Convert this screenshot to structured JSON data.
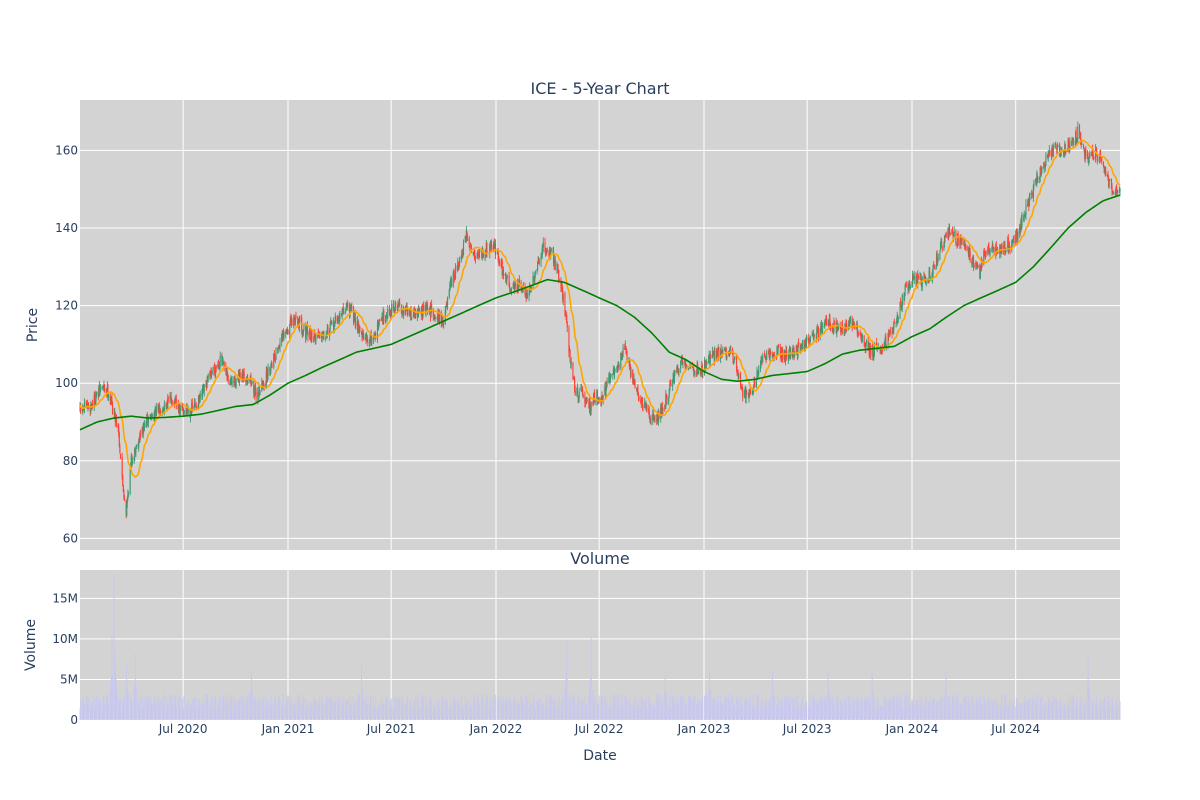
{
  "chart_data": [
    {
      "type": "candlestick",
      "title": "ICE - 5-Year Chart",
      "ylabel": "Price",
      "xlabel": "",
      "ylim": [
        57,
        173
      ],
      "yticks": [
        60,
        80,
        100,
        120,
        140,
        160
      ],
      "xlim": [
        "2020-01-02",
        "2024-12-31"
      ],
      "grid": true,
      "increasing_color": "#3d9970",
      "decreasing_color": "#ff4136",
      "overlays": [
        {
          "color": "#ffa500",
          "role": "short moving average"
        },
        {
          "color": "#008000",
          "role": "long moving average"
        }
      ],
      "close_anchors": [
        [
          "2020-01-02",
          93
        ],
        [
          "2020-01-20",
          94
        ],
        [
          "2020-02-10",
          99
        ],
        [
          "2020-02-21",
          98
        ],
        [
          "2020-03-02",
          92
        ],
        [
          "2020-03-09",
          89
        ],
        [
          "2020-03-16",
          75
        ],
        [
          "2020-03-23",
          67
        ],
        [
          "2020-04-01",
          80
        ],
        [
          "2020-04-15",
          86
        ],
        [
          "2020-05-01",
          91
        ],
        [
          "2020-05-20",
          93
        ],
        [
          "2020-06-10",
          96
        ],
        [
          "2020-06-25",
          93
        ],
        [
          "2020-07-15",
          93
        ],
        [
          "2020-08-01",
          96
        ],
        [
          "2020-08-20",
          103
        ],
        [
          "2020-09-05",
          106
        ],
        [
          "2020-09-20",
          100
        ],
        [
          "2020-10-10",
          101
        ],
        [
          "2020-10-25",
          102
        ],
        [
          "2020-11-05",
          97
        ],
        [
          "2020-11-20",
          100
        ],
        [
          "2020-12-05",
          106
        ],
        [
          "2020-12-20",
          111
        ],
        [
          "2021-01-05",
          115
        ],
        [
          "2021-01-15",
          117
        ],
        [
          "2021-02-01",
          113
        ],
        [
          "2021-02-15",
          112
        ],
        [
          "2021-03-01",
          113
        ],
        [
          "2021-03-15",
          114
        ],
        [
          "2021-04-01",
          117
        ],
        [
          "2021-04-15",
          120
        ],
        [
          "2021-05-01",
          116
        ],
        [
          "2021-05-15",
          111
        ],
        [
          "2021-06-01",
          112
        ],
        [
          "2021-06-15",
          117
        ],
        [
          "2021-07-01",
          119
        ],
        [
          "2021-07-15",
          120
        ],
        [
          "2021-08-01",
          118
        ],
        [
          "2021-08-15",
          118
        ],
        [
          "2021-09-01",
          119
        ],
        [
          "2021-09-15",
          118
        ],
        [
          "2021-10-01",
          116
        ],
        [
          "2021-10-15",
          126
        ],
        [
          "2021-11-01",
          132
        ],
        [
          "2021-11-10",
          138
        ],
        [
          "2021-11-25",
          133
        ],
        [
          "2021-12-10",
          134
        ],
        [
          "2021-12-28",
          136
        ],
        [
          "2022-01-10",
          130
        ],
        [
          "2022-01-25",
          125
        ],
        [
          "2022-02-10",
          125
        ],
        [
          "2022-02-25",
          123
        ],
        [
          "2022-03-10",
          127
        ],
        [
          "2022-03-25",
          135
        ],
        [
          "2022-04-10",
          133
        ],
        [
          "2022-04-25",
          126
        ],
        [
          "2022-05-01",
          120
        ],
        [
          "2022-05-10",
          108
        ],
        [
          "2022-05-20",
          98
        ],
        [
          "2022-06-01",
          97
        ],
        [
          "2022-06-15",
          94
        ],
        [
          "2022-06-25",
          97
        ],
        [
          "2022-07-05",
          96
        ],
        [
          "2022-07-20",
          101
        ],
        [
          "2022-08-05",
          105
        ],
        [
          "2022-08-15",
          110
        ],
        [
          "2022-08-25",
          103
        ],
        [
          "2022-09-10",
          96
        ],
        [
          "2022-09-25",
          92
        ],
        [
          "2022-10-10",
          91
        ],
        [
          "2022-10-25",
          95
        ],
        [
          "2022-11-10",
          102
        ],
        [
          "2022-11-25",
          106
        ],
        [
          "2022-12-10",
          104
        ],
        [
          "2022-12-25",
          103
        ],
        [
          "2023-01-10",
          106
        ],
        [
          "2023-01-25",
          108
        ],
        [
          "2023-02-10",
          108
        ],
        [
          "2023-02-25",
          106
        ],
        [
          "2023-03-05",
          100
        ],
        [
          "2023-03-12",
          97
        ],
        [
          "2023-03-25",
          98
        ],
        [
          "2023-04-10",
          105
        ],
        [
          "2023-04-25",
          107
        ],
        [
          "2023-05-10",
          108
        ],
        [
          "2023-05-25",
          107
        ],
        [
          "2023-06-10",
          108
        ],
        [
          "2023-06-25",
          110
        ],
        [
          "2023-07-10",
          112
        ],
        [
          "2023-07-25",
          114
        ],
        [
          "2023-08-05",
          116
        ],
        [
          "2023-08-20",
          114
        ],
        [
          "2023-09-05",
          114
        ],
        [
          "2023-09-20",
          116
        ],
        [
          "2023-10-05",
          111
        ],
        [
          "2023-10-20",
          108
        ],
        [
          "2023-11-05",
          109
        ],
        [
          "2023-11-20",
          112
        ],
        [
          "2023-12-05",
          116
        ],
        [
          "2023-12-20",
          124
        ],
        [
          "2024-01-05",
          127
        ],
        [
          "2024-01-20",
          126
        ],
        [
          "2024-02-05",
          128
        ],
        [
          "2024-02-20",
          135
        ],
        [
          "2024-03-05",
          139
        ],
        [
          "2024-03-20",
          137
        ],
        [
          "2024-04-01",
          137
        ],
        [
          "2024-04-15",
          132
        ],
        [
          "2024-04-28",
          128
        ],
        [
          "2024-05-10",
          135
        ],
        [
          "2024-05-25",
          134
        ],
        [
          "2024-06-10",
          135
        ],
        [
          "2024-06-25",
          136
        ],
        [
          "2024-07-10",
          141
        ],
        [
          "2024-07-25",
          147
        ],
        [
          "2024-08-10",
          154
        ],
        [
          "2024-08-25",
          158
        ],
        [
          "2024-09-05",
          160
        ],
        [
          "2024-09-20",
          160
        ],
        [
          "2024-10-05",
          162
        ],
        [
          "2024-10-20",
          165
        ],
        [
          "2024-11-01",
          158
        ],
        [
          "2024-11-15",
          159
        ],
        [
          "2024-11-28",
          158
        ],
        [
          "2024-12-10",
          152
        ],
        [
          "2024-12-20",
          149
        ],
        [
          "2024-12-31",
          149
        ]
      ],
      "long_ma_anchors": [
        [
          "2020-01-02",
          88
        ],
        [
          "2020-02-01",
          90
        ],
        [
          "2020-03-01",
          91
        ],
        [
          "2020-04-01",
          91.5
        ],
        [
          "2020-05-01",
          91
        ],
        [
          "2020-06-01",
          91.2
        ],
        [
          "2020-07-01",
          91.5
        ],
        [
          "2020-08-01",
          92
        ],
        [
          "2020-09-01",
          93
        ],
        [
          "2020-10-01",
          94
        ],
        [
          "2020-11-01",
          94.5
        ],
        [
          "2020-12-01",
          97
        ],
        [
          "2021-01-01",
          100
        ],
        [
          "2021-02-01",
          102
        ],
        [
          "2021-03-01",
          104
        ],
        [
          "2021-04-01",
          106
        ],
        [
          "2021-05-01",
          108
        ],
        [
          "2021-06-01",
          109
        ],
        [
          "2021-07-01",
          110
        ],
        [
          "2021-08-01",
          112
        ],
        [
          "2021-09-01",
          114
        ],
        [
          "2021-10-01",
          116
        ],
        [
          "2021-11-01",
          118
        ],
        [
          "2021-12-01",
          120
        ],
        [
          "2022-01-01",
          122
        ],
        [
          "2022-02-01",
          123.5
        ],
        [
          "2022-03-01",
          125
        ],
        [
          "2022-04-01",
          126.7
        ],
        [
          "2022-05-01",
          126
        ],
        [
          "2022-06-01",
          124
        ],
        [
          "2022-07-01",
          122
        ],
        [
          "2022-08-01",
          120
        ],
        [
          "2022-09-01",
          117
        ],
        [
          "2022-10-01",
          113
        ],
        [
          "2022-11-01",
          108
        ],
        [
          "2022-12-01",
          106
        ],
        [
          "2023-01-01",
          103
        ],
        [
          "2023-02-01",
          101
        ],
        [
          "2023-03-01",
          100.5
        ],
        [
          "2023-04-01",
          101
        ],
        [
          "2023-05-01",
          102
        ],
        [
          "2023-06-01",
          102.5
        ],
        [
          "2023-07-01",
          103
        ],
        [
          "2023-08-01",
          105
        ],
        [
          "2023-09-01",
          107.5
        ],
        [
          "2023-10-01",
          108.5
        ],
        [
          "2023-11-01",
          109
        ],
        [
          "2023-12-01",
          109.5
        ],
        [
          "2024-01-01",
          112
        ],
        [
          "2024-02-01",
          114
        ],
        [
          "2024-03-01",
          117
        ],
        [
          "2024-04-01",
          120
        ],
        [
          "2024-05-01",
          122
        ],
        [
          "2024-06-01",
          124
        ],
        [
          "2024-07-01",
          126
        ],
        [
          "2024-08-01",
          130
        ],
        [
          "2024-09-01",
          135
        ],
        [
          "2024-10-01",
          140
        ],
        [
          "2024-11-01",
          144
        ],
        [
          "2024-12-01",
          147
        ],
        [
          "2024-12-31",
          148.5
        ]
      ]
    },
    {
      "type": "bar",
      "title": "Volume",
      "ylabel": "Volume",
      "xlabel": "Date",
      "ylim": [
        0,
        18500000
      ],
      "yticks": [
        0,
        5000000,
        10000000,
        15000000
      ],
      "ytick_labels": [
        "0",
        "5M",
        "10M",
        "15M"
      ],
      "xtick_labels": [
        "Jul 2020",
        "Jan 2021",
        "Jul 2021",
        "Jan 2022",
        "Jul 2022",
        "Jan 2023",
        "Jul 2023",
        "Jan 2024",
        "Jul 2024"
      ],
      "xticks": [
        "2020-07-01",
        "2021-01-01",
        "2021-07-01",
        "2022-01-01",
        "2022-07-01",
        "2023-01-01",
        "2023-07-01",
        "2024-01-01",
        "2024-07-01"
      ],
      "xlim": [
        "2020-01-02",
        "2024-12-31"
      ],
      "bar_color": "#c8c8ec",
      "grid": true,
      "baseline_volume": 2500000,
      "volume_spikes": [
        [
          "2020-02-27",
          10500000
        ],
        [
          "2020-03-02",
          18000000
        ],
        [
          "2020-03-24",
          7000000
        ],
        [
          "2020-04-08",
          8200000
        ],
        [
          "2020-10-29",
          6200000
        ],
        [
          "2021-05-10",
          7000000
        ],
        [
          "2022-05-05",
          9800000
        ],
        [
          "2022-06-17",
          10300000
        ],
        [
          "2022-10-25",
          5500000
        ],
        [
          "2023-01-11",
          6000000
        ],
        [
          "2023-05-01",
          6000000
        ],
        [
          "2023-08-07",
          5800000
        ],
        [
          "2023-10-23",
          6100000
        ],
        [
          "2024-03-01",
          6400000
        ],
        [
          "2024-11-05",
          8200000
        ]
      ]
    }
  ]
}
